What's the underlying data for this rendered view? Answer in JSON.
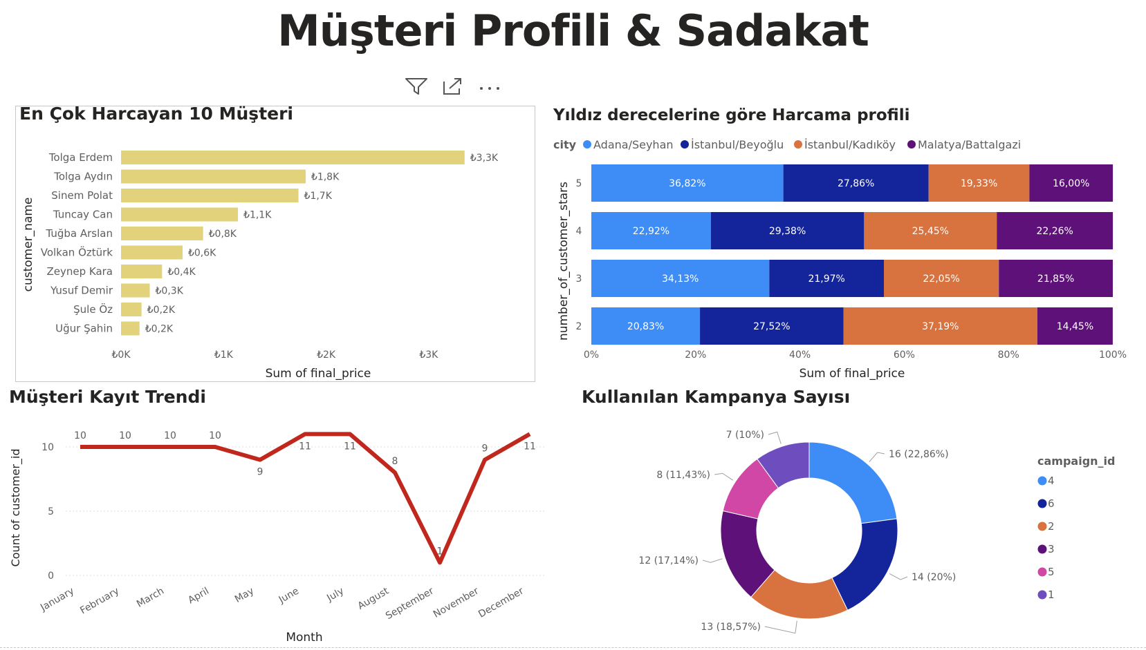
{
  "page": {
    "title": "Müşteri Profili & Sadakat"
  },
  "visual_header": {
    "icons": [
      "filter-icon",
      "focus-mode-icon",
      "more-options-icon"
    ]
  },
  "colors": {
    "bar": "#E2D27B",
    "line": "#C0281E",
    "blue": "#3E8CF6",
    "navy": "#14249A",
    "orange": "#D8723F",
    "purple": "#5E1279",
    "pink": "#D047A6",
    "violet": "#6E4DBF",
    "grid": "#dcdcdc",
    "axis_text": "#605E5C"
  },
  "chart_data": [
    {
      "type": "bar",
      "orientation": "horizontal",
      "title": "En Çok Harcayan 10 Müşteri",
      "xlabel": "Sum of final_price",
      "ylabel": "customer_name",
      "categories": [
        "Tolga Erdem",
        "Tolga Aydın",
        "Sinem Polat",
        "Tuncay Can",
        "Tuğba Arslan",
        "Volkan Öztürk",
        "Zeynep Kara",
        "Yusuf Demir",
        "Şule Öz",
        "Uğur Şahin"
      ],
      "values": [
        3350,
        1800,
        1730,
        1140,
        800,
        600,
        400,
        280,
        200,
        180
      ],
      "data_labels": [
        "₺3,3K",
        "₺1,8K",
        "₺1,7K",
        "₺1,1K",
        "₺0,8K",
        "₺0,6K",
        "₺0,4K",
        "₺0,3K",
        "₺0,2K",
        "₺0,2K"
      ],
      "xlim": [
        0,
        3500
      ],
      "x_ticks": [
        0,
        1000,
        2000,
        3000
      ],
      "x_tick_labels": [
        "₺0K",
        "₺1K",
        "₺2K",
        "₺3K"
      ]
    },
    {
      "type": "bar",
      "orientation": "horizontal",
      "stacked": "100%",
      "title": "Yıldız derecelerine göre Harcama profili",
      "legend_title": "city",
      "legend_position": "top-left",
      "xlabel": "Sum of final_price",
      "ylabel": "number_of_customer_stars",
      "categories": [
        "5",
        "4",
        "3",
        "2"
      ],
      "series": [
        {
          "name": "Adana/Seyhan",
          "color": "#3E8CF6",
          "values": [
            36.82,
            22.92,
            34.13,
            20.83
          ],
          "labels": [
            "36,82%",
            "22,92%",
            "34,13%",
            "20,83%"
          ]
        },
        {
          "name": "İstanbul/Beyoğlu",
          "color": "#14249A",
          "values": [
            27.86,
            29.38,
            21.97,
            27.52
          ],
          "labels": [
            "27,86%",
            "29,38%",
            "21,97%",
            "27,52%"
          ]
        },
        {
          "name": "İstanbul/Kadıköy",
          "color": "#D8723F",
          "values": [
            19.33,
            25.45,
            22.05,
            37.19
          ],
          "labels": [
            "19,33%",
            "25,45%",
            "22,05%",
            "37,19%"
          ]
        },
        {
          "name": "Malatya/Battalgazi",
          "color": "#5E1279",
          "values": [
            16.0,
            22.26,
            21.85,
            14.45
          ],
          "labels": [
            "16,00%",
            "22,26%",
            "21,85%",
            "14,45%"
          ]
        }
      ],
      "x_ticks": [
        0,
        20,
        40,
        60,
        80,
        100
      ],
      "x_tick_labels": [
        "0%",
        "20%",
        "40%",
        "60%",
        "80%",
        "100%"
      ]
    },
    {
      "type": "line",
      "title": "Müşteri Kayıt Trendi",
      "xlabel": "Month",
      "ylabel": "Count of customer_id",
      "categories": [
        "January",
        "February",
        "March",
        "April",
        "May",
        "June",
        "July",
        "August",
        "September",
        "November",
        "December"
      ],
      "values": [
        10,
        10,
        10,
        10,
        9,
        11,
        11,
        8,
        1,
        9,
        11
      ],
      "ylim": [
        0,
        12
      ],
      "y_ticks": [
        0,
        5,
        10
      ],
      "grid": true
    },
    {
      "type": "pie",
      "donut": true,
      "title": "Kullanılan Kampanya Sayısı",
      "legend_title": "campaign_id",
      "legend_position": "right",
      "slices": [
        {
          "label": "4",
          "value": 16,
          "display": "16 (22,86%)",
          "color": "#3E8CF6"
        },
        {
          "label": "6",
          "value": 14,
          "display": "14 (20%)",
          "color": "#14249A"
        },
        {
          "label": "2",
          "value": 13,
          "display": "13 (18,57%)",
          "color": "#D8723F"
        },
        {
          "label": "3",
          "value": 12,
          "display": "12 (17,14%)",
          "color": "#5E1279"
        },
        {
          "label": "5",
          "value": 8,
          "display": "8 (11,43%)",
          "color": "#D047A6"
        },
        {
          "label": "1",
          "value": 7,
          "display": "7 (10%)",
          "color": "#6E4DBF"
        }
      ]
    }
  ]
}
